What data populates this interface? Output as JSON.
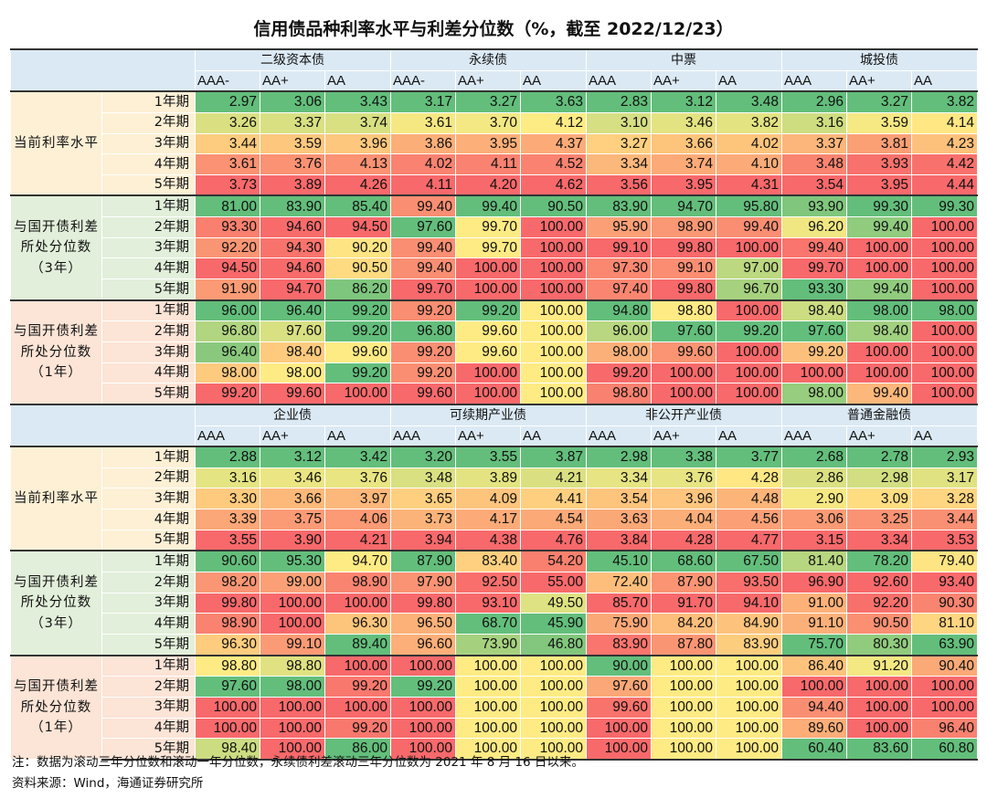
{
  "title": "信用债品种利率水平与利差分位数（%，截至 2022/12/23）",
  "palette": {
    "header": "#dbe9f4",
    "cat_rate": "#fdf0d5",
    "cat_pct3": "#e2efda",
    "cat_pct1": "#fce4d6",
    "scale_low": "#63be7b",
    "scale_mid": "#ffeb84",
    "scale_high": "#f8696b"
  },
  "blocks": [
    {
      "groups": [
        {
          "name": "二级资本债",
          "subs": [
            "AAA-",
            "AA+",
            "AA"
          ]
        },
        {
          "name": "永续债",
          "subs": [
            "AAA-",
            "AA+",
            "AA"
          ]
        },
        {
          "name": "中票",
          "subs": [
            "AAA",
            "AA+",
            "AA"
          ]
        },
        {
          "name": "城投债",
          "subs": [
            "AAA",
            "AA+",
            "AA"
          ]
        }
      ],
      "sections": [
        {
          "label": "当前利率水平",
          "scale": "rate",
          "rows": [
            {
              "tenor": "1年期",
              "values": [
                "2.97",
                "3.06",
                "3.43",
                "3.17",
                "3.27",
                "3.63",
                "2.83",
                "3.12",
                "3.48",
                "2.96",
                "3.27",
                "3.82"
              ]
            },
            {
              "tenor": "2年期",
              "values": [
                "3.26",
                "3.37",
                "3.74",
                "3.61",
                "3.70",
                "4.12",
                "3.10",
                "3.46",
                "3.82",
                "3.16",
                "3.59",
                "4.14"
              ]
            },
            {
              "tenor": "3年期",
              "values": [
                "3.44",
                "3.59",
                "3.96",
                "3.86",
                "3.95",
                "4.37",
                "3.27",
                "3.66",
                "4.02",
                "3.37",
                "3.81",
                "4.23"
              ]
            },
            {
              "tenor": "4年期",
              "values": [
                "3.61",
                "3.76",
                "4.13",
                "4.02",
                "4.11",
                "4.52",
                "3.34",
                "3.74",
                "4.10",
                "3.48",
                "3.93",
                "4.42"
              ]
            },
            {
              "tenor": "5年期",
              "values": [
                "3.73",
                "3.89",
                "4.26",
                "4.11",
                "4.20",
                "4.62",
                "3.56",
                "3.95",
                "4.31",
                "3.54",
                "3.95",
                "4.44"
              ]
            }
          ]
        },
        {
          "label": "与国开债利差所处分位数（3年）",
          "scale": "pct",
          "rows": [
            {
              "tenor": "1年期",
              "values": [
                "81.00",
                "83.90",
                "85.40",
                "99.40",
                "99.40",
                "90.50",
                "83.90",
                "94.70",
                "95.80",
                "93.90",
                "99.30",
                "99.30"
              ]
            },
            {
              "tenor": "2年期",
              "values": [
                "93.30",
                "94.60",
                "94.50",
                "97.60",
                "99.70",
                "100.00",
                "95.90",
                "98.90",
                "99.40",
                "96.20",
                "99.40",
                "100.00"
              ]
            },
            {
              "tenor": "3年期",
              "values": [
                "92.20",
                "94.30",
                "90.20",
                "99.40",
                "99.70",
                "100.00",
                "99.10",
                "99.80",
                "100.00",
                "99.40",
                "100.00",
                "100.00"
              ]
            },
            {
              "tenor": "4年期",
              "values": [
                "94.50",
                "94.60",
                "90.50",
                "99.40",
                "100.00",
                "100.00",
                "97.30",
                "99.10",
                "97.00",
                "99.70",
                "100.00",
                "100.00"
              ]
            },
            {
              "tenor": "5年期",
              "values": [
                "91.90",
                "94.70",
                "86.20",
                "99.70",
                "100.00",
                "100.00",
                "97.40",
                "99.80",
                "96.70",
                "93.30",
                "99.40",
                "100.00"
              ]
            }
          ]
        },
        {
          "label": "与国开债利差所处分位数（1年）",
          "scale": "pct",
          "rows": [
            {
              "tenor": "1年期",
              "values": [
                "96.00",
                "96.40",
                "99.20",
                "99.20",
                "99.20",
                "100.00",
                "94.80",
                "98.80",
                "100.00",
                "98.40",
                "98.00",
                "98.00"
              ]
            },
            {
              "tenor": "2年期",
              "values": [
                "96.80",
                "97.60",
                "99.20",
                "96.80",
                "99.60",
                "100.00",
                "96.00",
                "97.60",
                "99.20",
                "97.60",
                "98.40",
                "100.00"
              ]
            },
            {
              "tenor": "3年期",
              "values": [
                "96.40",
                "98.40",
                "99.60",
                "99.20",
                "99.60",
                "100.00",
                "98.00",
                "99.60",
                "100.00",
                "99.20",
                "100.00",
                "100.00"
              ]
            },
            {
              "tenor": "4年期",
              "values": [
                "98.00",
                "98.00",
                "99.20",
                "99.20",
                "100.00",
                "100.00",
                "99.20",
                "100.00",
                "100.00",
                "100.00",
                "100.00",
                "100.00"
              ]
            },
            {
              "tenor": "5年期",
              "values": [
                "99.20",
                "99.60",
                "100.00",
                "99.60",
                "100.00",
                "100.00",
                "98.80",
                "100.00",
                "100.00",
                "98.00",
                "99.40",
                "100.00"
              ]
            }
          ]
        }
      ]
    },
    {
      "groups": [
        {
          "name": "企业债",
          "subs": [
            "AAA",
            "AA+",
            "AA"
          ]
        },
        {
          "name": "可续期产业债",
          "subs": [
            "AAA",
            "AA+",
            "AA"
          ]
        },
        {
          "name": "非公开产业债",
          "subs": [
            "AAA",
            "AA+",
            "AA"
          ]
        },
        {
          "name": "普通金融债",
          "subs": [
            "AAA",
            "AA+",
            "AA"
          ]
        }
      ],
      "sections": [
        {
          "label": "当前利率水平",
          "scale": "rate",
          "rows": [
            {
              "tenor": "1年期",
              "values": [
                "2.88",
                "3.12",
                "3.42",
                "3.20",
                "3.55",
                "3.87",
                "2.98",
                "3.38",
                "3.77",
                "2.68",
                "2.78",
                "2.93"
              ]
            },
            {
              "tenor": "2年期",
              "values": [
                "3.16",
                "3.46",
                "3.76",
                "3.48",
                "3.89",
                "4.21",
                "3.34",
                "3.76",
                "4.28",
                "2.86",
                "2.98",
                "3.17"
              ]
            },
            {
              "tenor": "3年期",
              "values": [
                "3.30",
                "3.66",
                "3.97",
                "3.65",
                "4.09",
                "4.41",
                "3.54",
                "3.96",
                "4.48",
                "2.90",
                "3.09",
                "3.28"
              ]
            },
            {
              "tenor": "4年期",
              "values": [
                "3.39",
                "3.75",
                "4.06",
                "3.73",
                "4.17",
                "4.54",
                "3.63",
                "4.04",
                "4.56",
                "3.06",
                "3.25",
                "3.44"
              ]
            },
            {
              "tenor": "5年期",
              "values": [
                "3.55",
                "3.90",
                "4.21",
                "3.94",
                "4.38",
                "4.76",
                "3.84",
                "4.28",
                "4.77",
                "3.15",
                "3.34",
                "3.53"
              ]
            }
          ]
        },
        {
          "label": "与国开债利差所处分位数（3年）",
          "scale": "pct",
          "rows": [
            {
              "tenor": "1年期",
              "values": [
                "90.60",
                "95.30",
                "94.70",
                "87.90",
                "83.40",
                "54.20",
                "45.10",
                "68.60",
                "67.50",
                "81.40",
                "78.20",
                "79.40"
              ]
            },
            {
              "tenor": "2年期",
              "values": [
                "98.20",
                "99.00",
                "98.90",
                "97.90",
                "92.50",
                "55.00",
                "72.40",
                "87.90",
                "93.50",
                "96.90",
                "92.60",
                "93.40"
              ]
            },
            {
              "tenor": "3年期",
              "values": [
                "99.80",
                "100.00",
                "100.00",
                "99.80",
                "93.10",
                "49.50",
                "85.70",
                "91.70",
                "94.10",
                "91.00",
                "92.20",
                "90.30"
              ]
            },
            {
              "tenor": "4年期",
              "values": [
                "98.90",
                "100.00",
                "96.30",
                "96.50",
                "68.70",
                "45.90",
                "75.90",
                "84.20",
                "84.90",
                "91.10",
                "90.50",
                "81.10"
              ]
            },
            {
              "tenor": "5年期",
              "values": [
                "96.30",
                "99.10",
                "89.40",
                "96.60",
                "73.90",
                "46.80",
                "83.90",
                "87.80",
                "83.90",
                "75.70",
                "80.30",
                "63.90"
              ]
            }
          ]
        },
        {
          "label": "与国开债利差所处分位数（1年）",
          "scale": "pct",
          "rows": [
            {
              "tenor": "1年期",
              "values": [
                "98.80",
                "98.80",
                "100.00",
                "100.00",
                "100.00",
                "100.00",
                "90.00",
                "100.00",
                "100.00",
                "86.40",
                "91.20",
                "90.40"
              ]
            },
            {
              "tenor": "2年期",
              "values": [
                "97.60",
                "98.00",
                "99.20",
                "99.20",
                "100.00",
                "100.00",
                "97.60",
                "100.00",
                "100.00",
                "100.00",
                "100.00",
                "100.00"
              ]
            },
            {
              "tenor": "3年期",
              "values": [
                "100.00",
                "100.00",
                "100.00",
                "100.00",
                "100.00",
                "100.00",
                "99.60",
                "100.00",
                "100.00",
                "94.40",
                "100.00",
                "100.00"
              ]
            },
            {
              "tenor": "4年期",
              "values": [
                "100.00",
                "100.00",
                "99.20",
                "100.00",
                "100.00",
                "100.00",
                "100.00",
                "100.00",
                "100.00",
                "89.60",
                "100.00",
                "96.40"
              ]
            },
            {
              "tenor": "5年期",
              "values": [
                "98.40",
                "100.00",
                "86.00",
                "100.00",
                "100.00",
                "100.00",
                "100.00",
                "100.00",
                "100.00",
                "60.40",
                "83.60",
                "60.80"
              ]
            }
          ]
        }
      ]
    }
  ],
  "notes": [
    "注：数据为滚动三年分位数和滚动一年分位数，永续债利差滚动三年分位数为 2021 年 8 月 16 日以来。",
    "资料来源：Wind，海通证券研究所"
  ]
}
